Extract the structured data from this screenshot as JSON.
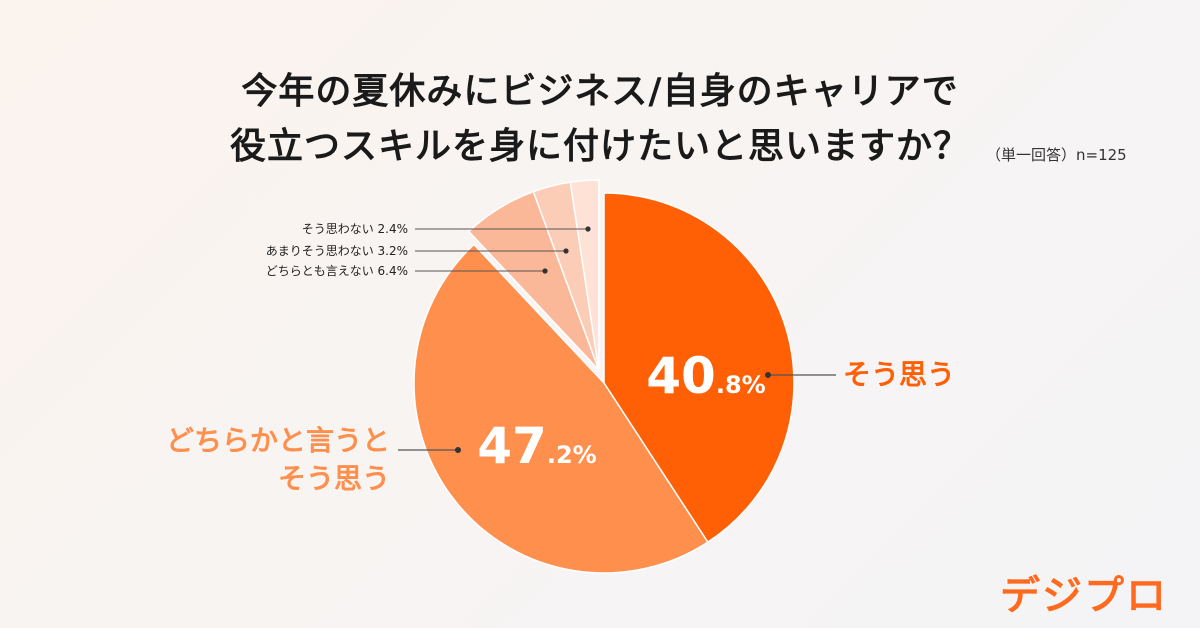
{
  "chart_data": {
    "type": "pie",
    "title_lines": [
      "今年の夏休みにビジネス/自身のキャリアで",
      "役立つスキルを身に付けたいと思いますか？"
    ],
    "note": "（単一回答）n=125",
    "slices": [
      {
        "label": "そう思う",
        "label_lines": [
          "そう思う"
        ],
        "value": 40.8,
        "int": "40",
        "dec": ".8%",
        "color": "#ff5f05"
      },
      {
        "label": "どちらかと言うとそう思う",
        "label_lines": [
          "どちらかと言うと",
          "そう思う"
        ],
        "value": 47.2,
        "int": "47",
        "dec": ".2%",
        "color": "#ff8f4d"
      },
      {
        "label": "どちらとも言えない",
        "value": 6.4,
        "text": "どちらとも言えない 6.4%",
        "color": "#fbb898"
      },
      {
        "label": "あまりそう思わない",
        "value": 3.2,
        "text": "あまりそう思わない 3.2%",
        "color": "#fccdb6"
      },
      {
        "label": "そう思わない",
        "value": 2.4,
        "text": "そう思わない 2.4%",
        "color": "#fde2d5"
      }
    ]
  },
  "brand": {
    "name": "デジプロ",
    "color": "#ff6a1f"
  }
}
